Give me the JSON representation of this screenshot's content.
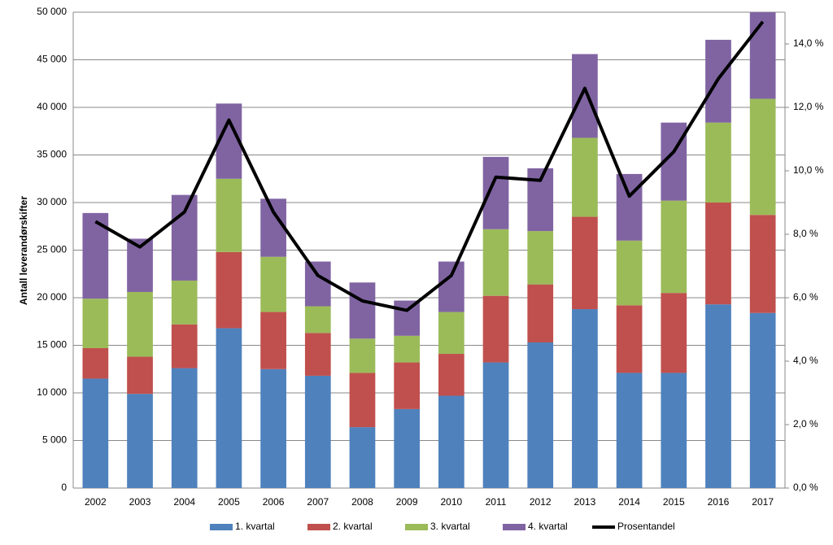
{
  "chart_data": {
    "type": "bar-line",
    "y_label": "Antall leverandørskifter",
    "categories": [
      "2002",
      "2003",
      "2004",
      "2005",
      "2006",
      "2007",
      "2008",
      "2009",
      "2010",
      "2011",
      "2012",
      "2013",
      "2014",
      "2015",
      "2016",
      "2017"
    ],
    "series": [
      {
        "name": "1. kvartal",
        "color": "#4f81bd",
        "values": [
          11500,
          9900,
          12600,
          16800,
          12500,
          11800,
          6400,
          8300,
          9700,
          13200,
          15300,
          18800,
          12100,
          12100,
          19300,
          18400
        ]
      },
      {
        "name": "2. kvartal",
        "color": "#c0504d",
        "values": [
          3200,
          3900,
          4600,
          8000,
          6000,
          4500,
          5700,
          4900,
          4400,
          7000,
          6100,
          9700,
          7100,
          8400,
          10700,
          10300
        ]
      },
      {
        "name": "3. kvartal",
        "color": "#9bbb59",
        "values": [
          5200,
          6800,
          4600,
          7700,
          5800,
          2800,
          3600,
          2800,
          4400,
          7000,
          5600,
          8300,
          6800,
          9700,
          8400,
          12200
        ]
      },
      {
        "name": "4. kvartal",
        "color": "#8064a2",
        "values": [
          9000,
          5600,
          9000,
          7900,
          6100,
          4700,
          5900,
          3700,
          5300,
          7600,
          6600,
          8800,
          7000,
          8200,
          8700,
          9100
        ]
      },
      {
        "name": "Prosentandel",
        "color": "#000000",
        "type": "line",
        "axis": "y2",
        "values": [
          8.4,
          7.6,
          8.7,
          11.6,
          8.7,
          6.7,
          5.9,
          5.6,
          6.7,
          9.8,
          9.7,
          12.6,
          9.2,
          10.6,
          12.9,
          14.7
        ]
      }
    ],
    "ylim": [
      0,
      50000
    ],
    "yticks": [
      0,
      {
        "value": 5000,
        "label": "5 000"
      },
      {
        "value": 10000,
        "label": "10 000"
      },
      {
        "value": 15000,
        "label": "15 000"
      },
      {
        "value": 20000,
        "label": "20 000"
      },
      {
        "value": 25000,
        "label": "25 000"
      },
      {
        "value": 30000,
        "label": "30 000"
      },
      {
        "value": 35000,
        "label": "35 000"
      },
      {
        "value": 40000,
        "label": "40 000"
      },
      {
        "value": 45000,
        "label": "45 000"
      },
      {
        "value": 50000,
        "label": "50 000"
      }
    ],
    "y2lim": [
      0,
      15
    ],
    "y2ticks": [
      {
        "value": 0,
        "label": "0,0 %"
      },
      {
        "value": 2,
        "label": "2,0 %"
      },
      {
        "value": 4,
        "label": "4,0 %"
      },
      {
        "value": 6,
        "label": "6,0 %"
      },
      {
        "value": 8,
        "label": "8,0 %"
      },
      {
        "value": 10,
        "label": "10,0 %"
      },
      {
        "value": 12,
        "label": "12,0 %"
      },
      {
        "value": 14,
        "label": "14,0 %"
      }
    ],
    "grid": true,
    "legend": "bottom"
  }
}
